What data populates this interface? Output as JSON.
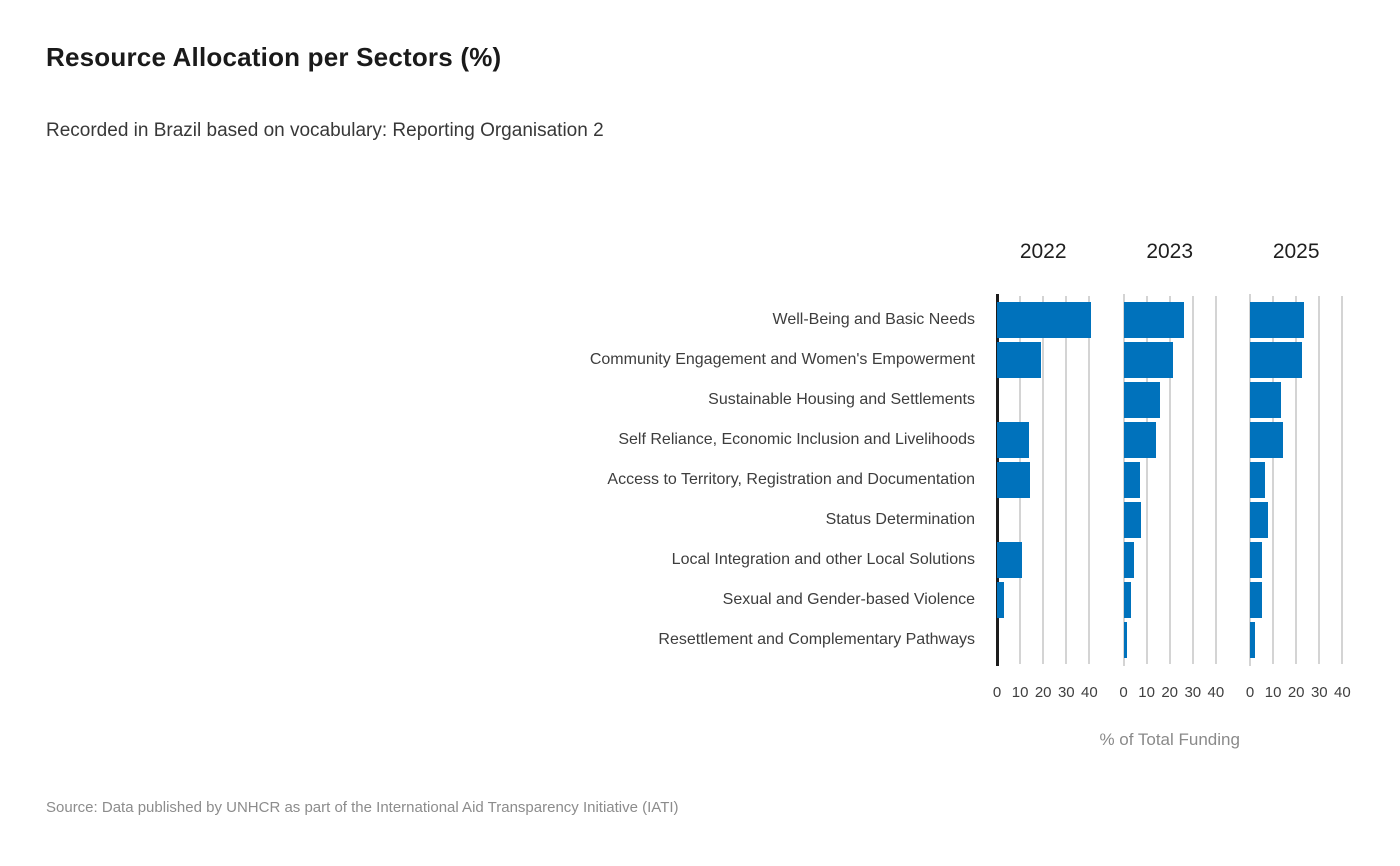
{
  "title": "Resource Allocation per Sectors (%)",
  "subtitle": "Recorded in Brazil based on vocabulary: Reporting Organisation 2",
  "source": "Source: Data published by UNHCR as part of the International Aid Transparency Initiative (IATI)",
  "colors": {
    "bar": "#0072BC",
    "grid": "#d4d4d4",
    "axis": "#1c1c1c",
    "category_text": "#3d3d3d",
    "tick_text": "#3f3f3f",
    "muted_text": "#8a8a8a"
  },
  "chart_data": {
    "type": "bar",
    "orientation": "horizontal",
    "title": "Resource Allocation per Sectors (%)",
    "subtitle": "Recorded in Brazil based on vocabulary: Reporting Organisation 2",
    "xlabel": "% of Total Funding",
    "ylabel": "",
    "facets": [
      "2022",
      "2023",
      "2025"
    ],
    "categories": [
      "Well-Being and Basic Needs",
      "Community Engagement and Women's Empowerment",
      "Sustainable Housing and Settlements",
      "Self Reliance, Economic Inclusion and Livelihoods",
      "Access to Territory, Registration and Documentation",
      "Status Determination",
      "Local Integration and other Local Solutions",
      "Sexual and Gender-based Violence",
      "Resettlement and Complementary Pathways"
    ],
    "series": [
      {
        "name": "2022",
        "values": [
          40.7,
          19.0,
          0,
          13.9,
          14.5,
          0,
          11.0,
          3.2,
          0
        ]
      },
      {
        "name": "2023",
        "values": [
          26.4,
          21.3,
          15.6,
          14.0,
          7.0,
          7.5,
          4.5,
          3.4,
          1.7
        ]
      },
      {
        "name": "2025",
        "values": [
          23.3,
          22.3,
          13.6,
          14.3,
          6.6,
          7.7,
          5.0,
          5.0,
          2.2
        ]
      }
    ],
    "x_ticks": [
      0,
      10,
      20,
      30,
      40
    ],
    "xlim": [
      0,
      42
    ],
    "grid": true,
    "legend_position": "none"
  }
}
